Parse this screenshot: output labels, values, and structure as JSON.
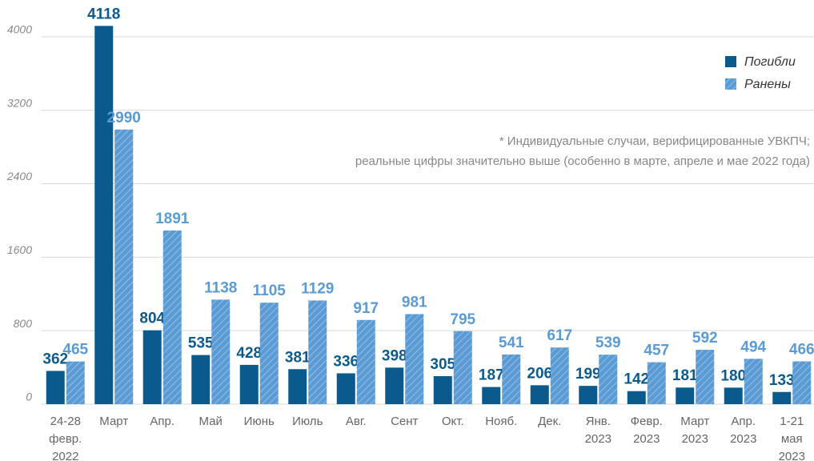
{
  "chart_data": {
    "type": "bar",
    "categories": [
      [
        "24-28",
        "февр.",
        "2022"
      ],
      [
        "Март"
      ],
      [
        "Апр."
      ],
      [
        "Май"
      ],
      [
        "Июнь"
      ],
      [
        "Июль"
      ],
      [
        "Авг."
      ],
      [
        "Сент"
      ],
      [
        "Окт."
      ],
      [
        "Нояб."
      ],
      [
        "Дек."
      ],
      [
        "Янв.",
        "2023"
      ],
      [
        "Февр.",
        "2023"
      ],
      [
        "Март",
        "2023"
      ],
      [
        "Апр.",
        "2023"
      ],
      [
        "1-21",
        "мая",
        "2023"
      ]
    ],
    "series": [
      {
        "name": "Погибли",
        "color": "#0b5a8e",
        "hatch": false,
        "values": [
          362,
          4118,
          804,
          535,
          428,
          381,
          336,
          398,
          305,
          187,
          206,
          199,
          142,
          181,
          180,
          133
        ]
      },
      {
        "name": "Ранены",
        "color": "#5b9bd5",
        "hatch": true,
        "values": [
          465,
          2990,
          1891,
          1138,
          1105,
          1129,
          917,
          981,
          795,
          541,
          617,
          539,
          457,
          592,
          494,
          466
        ]
      }
    ],
    "ylim": [
      0,
      4400
    ],
    "yticks": [
      0,
      800,
      1600,
      2400,
      3200,
      4000
    ],
    "grid": true,
    "legend": "top-right",
    "annotation": [
      "* Индивидуальные случаи, верифицированные УВКПЧ;",
      "реальные цифры значительно выше (особенно в марте, апреле и мае 2022 года)"
    ]
  }
}
